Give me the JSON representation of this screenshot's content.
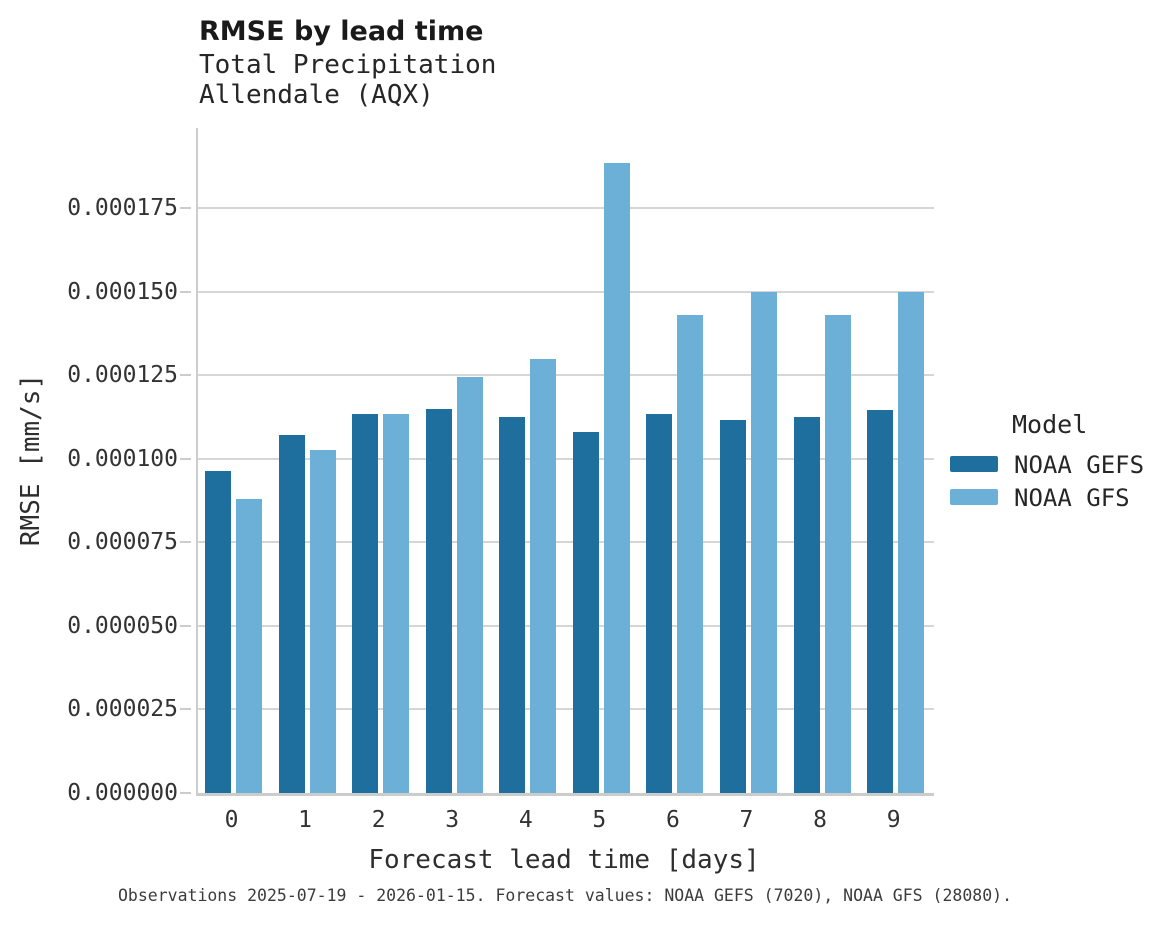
{
  "accent_colors": {
    "gefs_blue": "#1f6f9e",
    "gfs_light_blue": "#6cb0d8",
    "gridline_gray": "#d6d6d6",
    "axis_gray": "#cccccc"
  },
  "chart_data": {
    "type": "bar",
    "title": "RMSE by lead time",
    "subtitle_line1": "Total Precipitation",
    "subtitle_line2": "Allendale (AQX)",
    "xlabel": "Forecast lead time [days]",
    "ylabel": "RMSE [mm/s]",
    "categories": [
      "0",
      "1",
      "2",
      "3",
      "4",
      "5",
      "6",
      "7",
      "8",
      "9"
    ],
    "series": [
      {
        "name": "NOAA GEFS",
        "color": "#1f6f9e",
        "values": [
          9.65e-05,
          0.000107,
          0.0001135,
          0.000115,
          0.0001125,
          0.000108,
          0.0001135,
          0.0001115,
          0.0001125,
          0.0001145
        ]
      },
      {
        "name": "NOAA GFS",
        "color": "#6cb0d8",
        "values": [
          8.8e-05,
          0.0001025,
          0.0001135,
          0.0001245,
          0.00013,
          0.0001885,
          0.000143,
          0.00015,
          0.000143,
          0.00015
        ]
      }
    ],
    "yticks": [
      0,
      2.5e-05,
      5e-05,
      7.5e-05,
      0.0001,
      0.000125,
      0.00015,
      0.000175
    ],
    "ytick_labels": [
      "0.000000",
      "0.000025",
      "0.000050",
      "0.000075",
      "0.000100",
      "0.000125",
      "0.000150",
      "0.000175"
    ],
    "ylim": [
      0,
      0.000199
    ],
    "grid": "horizontal",
    "legend_title": "Model",
    "legend_position": "right",
    "caption": "Observations 2025-07-19 - 2026-01-15. Forecast values: NOAA GEFS (7020), NOAA GFS (28080)."
  }
}
